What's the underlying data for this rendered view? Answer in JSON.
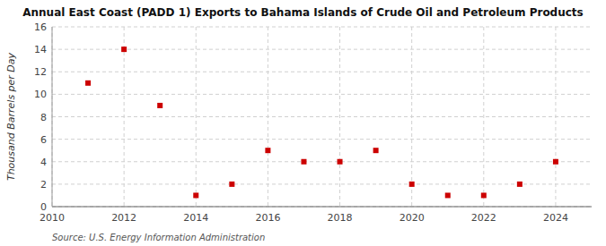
{
  "chart_data": {
    "type": "scatter",
    "title": "Annual East Coast (PADD 1) Exports to Bahama Islands of Crude Oil and Petroleum Products",
    "y_label": "Thousand Barrels per Day",
    "source": "Source: U.S. Energy Information Administration",
    "x": [
      2011,
      2012,
      2013,
      2014,
      2015,
      2016,
      2017,
      2018,
      2019,
      2020,
      2021,
      2022,
      2023,
      2024
    ],
    "values": [
      11,
      14,
      9,
      1,
      2,
      5,
      4,
      4,
      5,
      2,
      1,
      1,
      2,
      4
    ],
    "color": "#cc0000",
    "marker": "square",
    "xlim": [
      2010,
      2025
    ],
    "ylim": [
      0,
      16
    ],
    "xticks": [
      2010,
      2012,
      2014,
      2016,
      2018,
      2020,
      2022,
      2024
    ],
    "yticks": [
      0,
      2,
      4,
      6,
      8,
      10,
      12,
      14,
      16
    ],
    "grid": true
  }
}
